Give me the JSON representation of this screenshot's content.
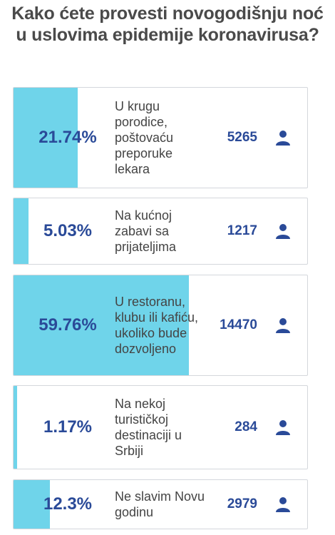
{
  "poll": {
    "question": "Kako ćete provesti novogodišnju noć u uslovima epidemije koronavirusa?",
    "accent_color": "#6fd4ea",
    "text_color": "#2a4a98",
    "vote_icon": "user-icon",
    "options": [
      {
        "percent": "21.74%",
        "fill_fraction": 0.2174,
        "label": "U krugu porodice, poštovaću preporuke lekara",
        "votes": "5265"
      },
      {
        "percent": "5.03%",
        "fill_fraction": 0.0503,
        "label": "Na kućnoj zabavi sa prijateljima",
        "votes": "1217"
      },
      {
        "percent": "59.76%",
        "fill_fraction": 0.5976,
        "label": "U restoranu, klubu ili kafiću, ukoliko bude dozvoljeno",
        "votes": "14470"
      },
      {
        "percent": "1.17%",
        "fill_fraction": 0.0117,
        "label": "Na nekoj turističkoj destinaciji u Srbiji",
        "votes": "284"
      },
      {
        "percent": "12.3%",
        "fill_fraction": 0.123,
        "label": "Ne slavim Novu godinu",
        "votes": "2979"
      }
    ]
  }
}
